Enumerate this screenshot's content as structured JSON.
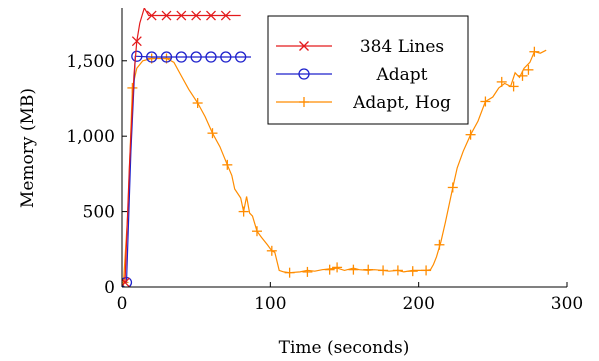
{
  "chart_data": {
    "type": "line",
    "title": "",
    "xlabel": "Time (seconds)",
    "ylabel": "Memory (MB)",
    "xlim": [
      0,
      300
    ],
    "ylim": [
      0,
      1850
    ],
    "xticks": [
      0,
      100,
      200,
      300
    ],
    "xtick_labels": [
      "0",
      "100",
      "200",
      "300"
    ],
    "yticks": [
      0,
      500,
      1000,
      1500
    ],
    "ytick_labels": [
      "0",
      "500",
      "1,000",
      "1,500"
    ],
    "grid": false,
    "legend_position": "top-right",
    "series": [
      {
        "name": "384 Lines",
        "color": "#e31a1c",
        "marker": "x",
        "points": [
          [
            2,
            30
          ],
          [
            5,
            800
          ],
          [
            8,
            1400
          ],
          [
            10,
            1630
          ],
          [
            12,
            1750
          ],
          [
            15,
            1850
          ],
          [
            18,
            1800
          ],
          [
            20,
            1800
          ],
          [
            30,
            1800
          ],
          [
            40,
            1800
          ],
          [
            50,
            1800
          ],
          [
            60,
            1800
          ],
          [
            70,
            1800
          ],
          [
            80,
            1800
          ]
        ],
        "marker_points": [
          [
            2,
            30
          ],
          [
            10,
            1630
          ],
          [
            20,
            1800
          ],
          [
            30,
            1800
          ],
          [
            40,
            1800
          ],
          [
            50,
            1800
          ],
          [
            60,
            1800
          ],
          [
            70,
            1800
          ]
        ]
      },
      {
        "name": "Adapt",
        "color": "#1f22cc",
        "marker": "o",
        "points": [
          [
            3,
            30
          ],
          [
            6,
            900
          ],
          [
            9,
            1530
          ],
          [
            10,
            1530
          ],
          [
            20,
            1525
          ],
          [
            30,
            1525
          ],
          [
            40,
            1525
          ],
          [
            50,
            1525
          ],
          [
            60,
            1525
          ],
          [
            70,
            1525
          ],
          [
            80,
            1525
          ],
          [
            87,
            1525
          ]
        ],
        "marker_points": [
          [
            3,
            30
          ],
          [
            10,
            1530
          ],
          [
            20,
            1525
          ],
          [
            30,
            1525
          ],
          [
            40,
            1525
          ],
          [
            50,
            1525
          ],
          [
            60,
            1525
          ],
          [
            70,
            1525
          ],
          [
            80,
            1525
          ]
        ]
      },
      {
        "name": "Adapt, Hog",
        "color": "#ff8c00",
        "marker": "+",
        "points": [
          [
            1,
            30
          ],
          [
            4,
            500
          ],
          [
            7,
            1320
          ],
          [
            10,
            1450
          ],
          [
            14,
            1500
          ],
          [
            20,
            1515
          ],
          [
            30,
            1515
          ],
          [
            35,
            1490
          ],
          [
            40,
            1400
          ],
          [
            45,
            1310
          ],
          [
            51,
            1220
          ],
          [
            56,
            1130
          ],
          [
            61,
            1020
          ],
          [
            66,
            930
          ],
          [
            71,
            810
          ],
          [
            74,
            740
          ],
          [
            76,
            650
          ],
          [
            80,
            590
          ],
          [
            82,
            500
          ],
          [
            84,
            600
          ],
          [
            86,
            490
          ],
          [
            88,
            470
          ],
          [
            91,
            370
          ],
          [
            94,
            330
          ],
          [
            98,
            280
          ],
          [
            101,
            240
          ],
          [
            103,
            230
          ],
          [
            106,
            110
          ],
          [
            109,
            100
          ],
          [
            113,
            95
          ],
          [
            120,
            100
          ],
          [
            125,
            110
          ],
          [
            130,
            105
          ],
          [
            135,
            115
          ],
          [
            140,
            120
          ],
          [
            145,
            125
          ],
          [
            150,
            110
          ],
          [
            156,
            125
          ],
          [
            160,
            115
          ],
          [
            166,
            110
          ],
          [
            170,
            115
          ],
          [
            176,
            110
          ],
          [
            180,
            105
          ],
          [
            186,
            110
          ],
          [
            190,
            100
          ],
          [
            196,
            110
          ],
          [
            200,
            110
          ],
          [
            205,
            110
          ],
          [
            208,
            115
          ],
          [
            210,
            150
          ],
          [
            212,
            200
          ],
          [
            215,
            300
          ],
          [
            218,
            430
          ],
          [
            220,
            520
          ],
          [
            223,
            660
          ],
          [
            226,
            790
          ],
          [
            230,
            900
          ],
          [
            235,
            1010
          ],
          [
            240,
            1100
          ],
          [
            245,
            1230
          ],
          [
            250,
            1260
          ],
          [
            254,
            1320
          ],
          [
            258,
            1350
          ],
          [
            262,
            1330
          ],
          [
            265,
            1420
          ],
          [
            268,
            1390
          ],
          [
            271,
            1450
          ],
          [
            275,
            1490
          ],
          [
            278,
            1560
          ],
          [
            282,
            1550
          ],
          [
            286,
            1570
          ]
        ],
        "marker_points": [
          [
            1,
            30
          ],
          [
            7,
            1320
          ],
          [
            20,
            1515
          ],
          [
            30,
            1515
          ],
          [
            51,
            1220
          ],
          [
            61,
            1020
          ],
          [
            71,
            810
          ],
          [
            82,
            500
          ],
          [
            91,
            370
          ],
          [
            101,
            240
          ],
          [
            113,
            95
          ],
          [
            125,
            100
          ],
          [
            140,
            115
          ],
          [
            145,
            130
          ],
          [
            156,
            115
          ],
          [
            166,
            115
          ],
          [
            176,
            110
          ],
          [
            186,
            110
          ],
          [
            196,
            105
          ],
          [
            205,
            110
          ],
          [
            214,
            280
          ],
          [
            223,
            660
          ],
          [
            235,
            1010
          ],
          [
            245,
            1230
          ],
          [
            256,
            1360
          ],
          [
            264,
            1330
          ],
          [
            270,
            1400
          ],
          [
            274,
            1440
          ],
          [
            278,
            1560
          ]
        ]
      }
    ]
  }
}
